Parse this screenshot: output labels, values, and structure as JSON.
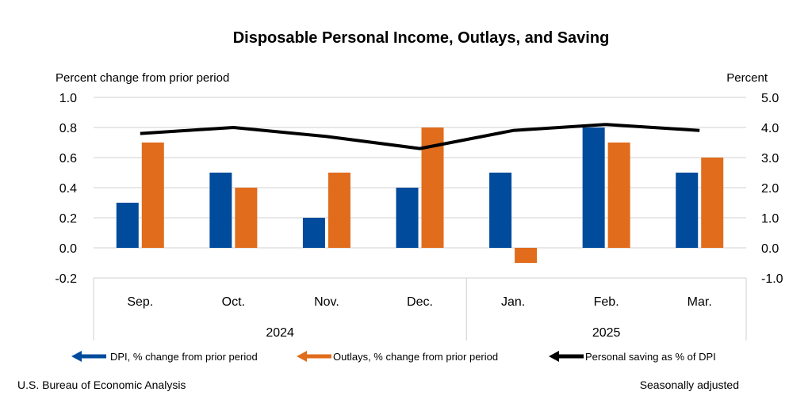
{
  "chart_data": {
    "type": "bar",
    "title": "Disposable Personal Income, Outlays, and Saving",
    "left_axis_label": "Percent change from prior period",
    "right_axis_label": "Percent",
    "left_ylim": [
      -0.2,
      1.0
    ],
    "right_ylim": [
      -1.0,
      5.0
    ],
    "left_ticks": [
      "1.0",
      "0.8",
      "0.6",
      "0.4",
      "0.2",
      "0.0",
      "-0.2"
    ],
    "right_ticks": [
      "5.0",
      "4.0",
      "3.0",
      "2.0",
      "1.0",
      "0.0",
      "-1.0"
    ],
    "categories": [
      "Sep.",
      "Oct.",
      "Nov.",
      "Dec.",
      "Jan.",
      "Feb.",
      "Mar."
    ],
    "groups": [
      {
        "label": "2024",
        "count": 4
      },
      {
        "label": "2025",
        "count": 3
      }
    ],
    "grid": true,
    "legend_position": "bottom",
    "series": [
      {
        "name": "DPI, % change from prior period",
        "type": "bar",
        "axis": "left",
        "color": "#004b9b",
        "values": [
          0.3,
          0.5,
          0.2,
          0.4,
          0.5,
          0.8,
          0.5
        ]
      },
      {
        "name": "Outlays, % change from prior period",
        "type": "bar",
        "axis": "left",
        "color": "#e06c1c",
        "values": [
          0.7,
          0.4,
          0.5,
          0.8,
          -0.1,
          0.7,
          0.6
        ]
      },
      {
        "name": "Personal saving as % of DPI",
        "type": "line",
        "axis": "right",
        "color": "#000000",
        "values": [
          3.8,
          4.0,
          3.7,
          3.3,
          3.9,
          4.1,
          3.9
        ]
      }
    ]
  },
  "footer": {
    "source": "U.S. Bureau of Economic Analysis",
    "note": "Seasonally adjusted"
  }
}
